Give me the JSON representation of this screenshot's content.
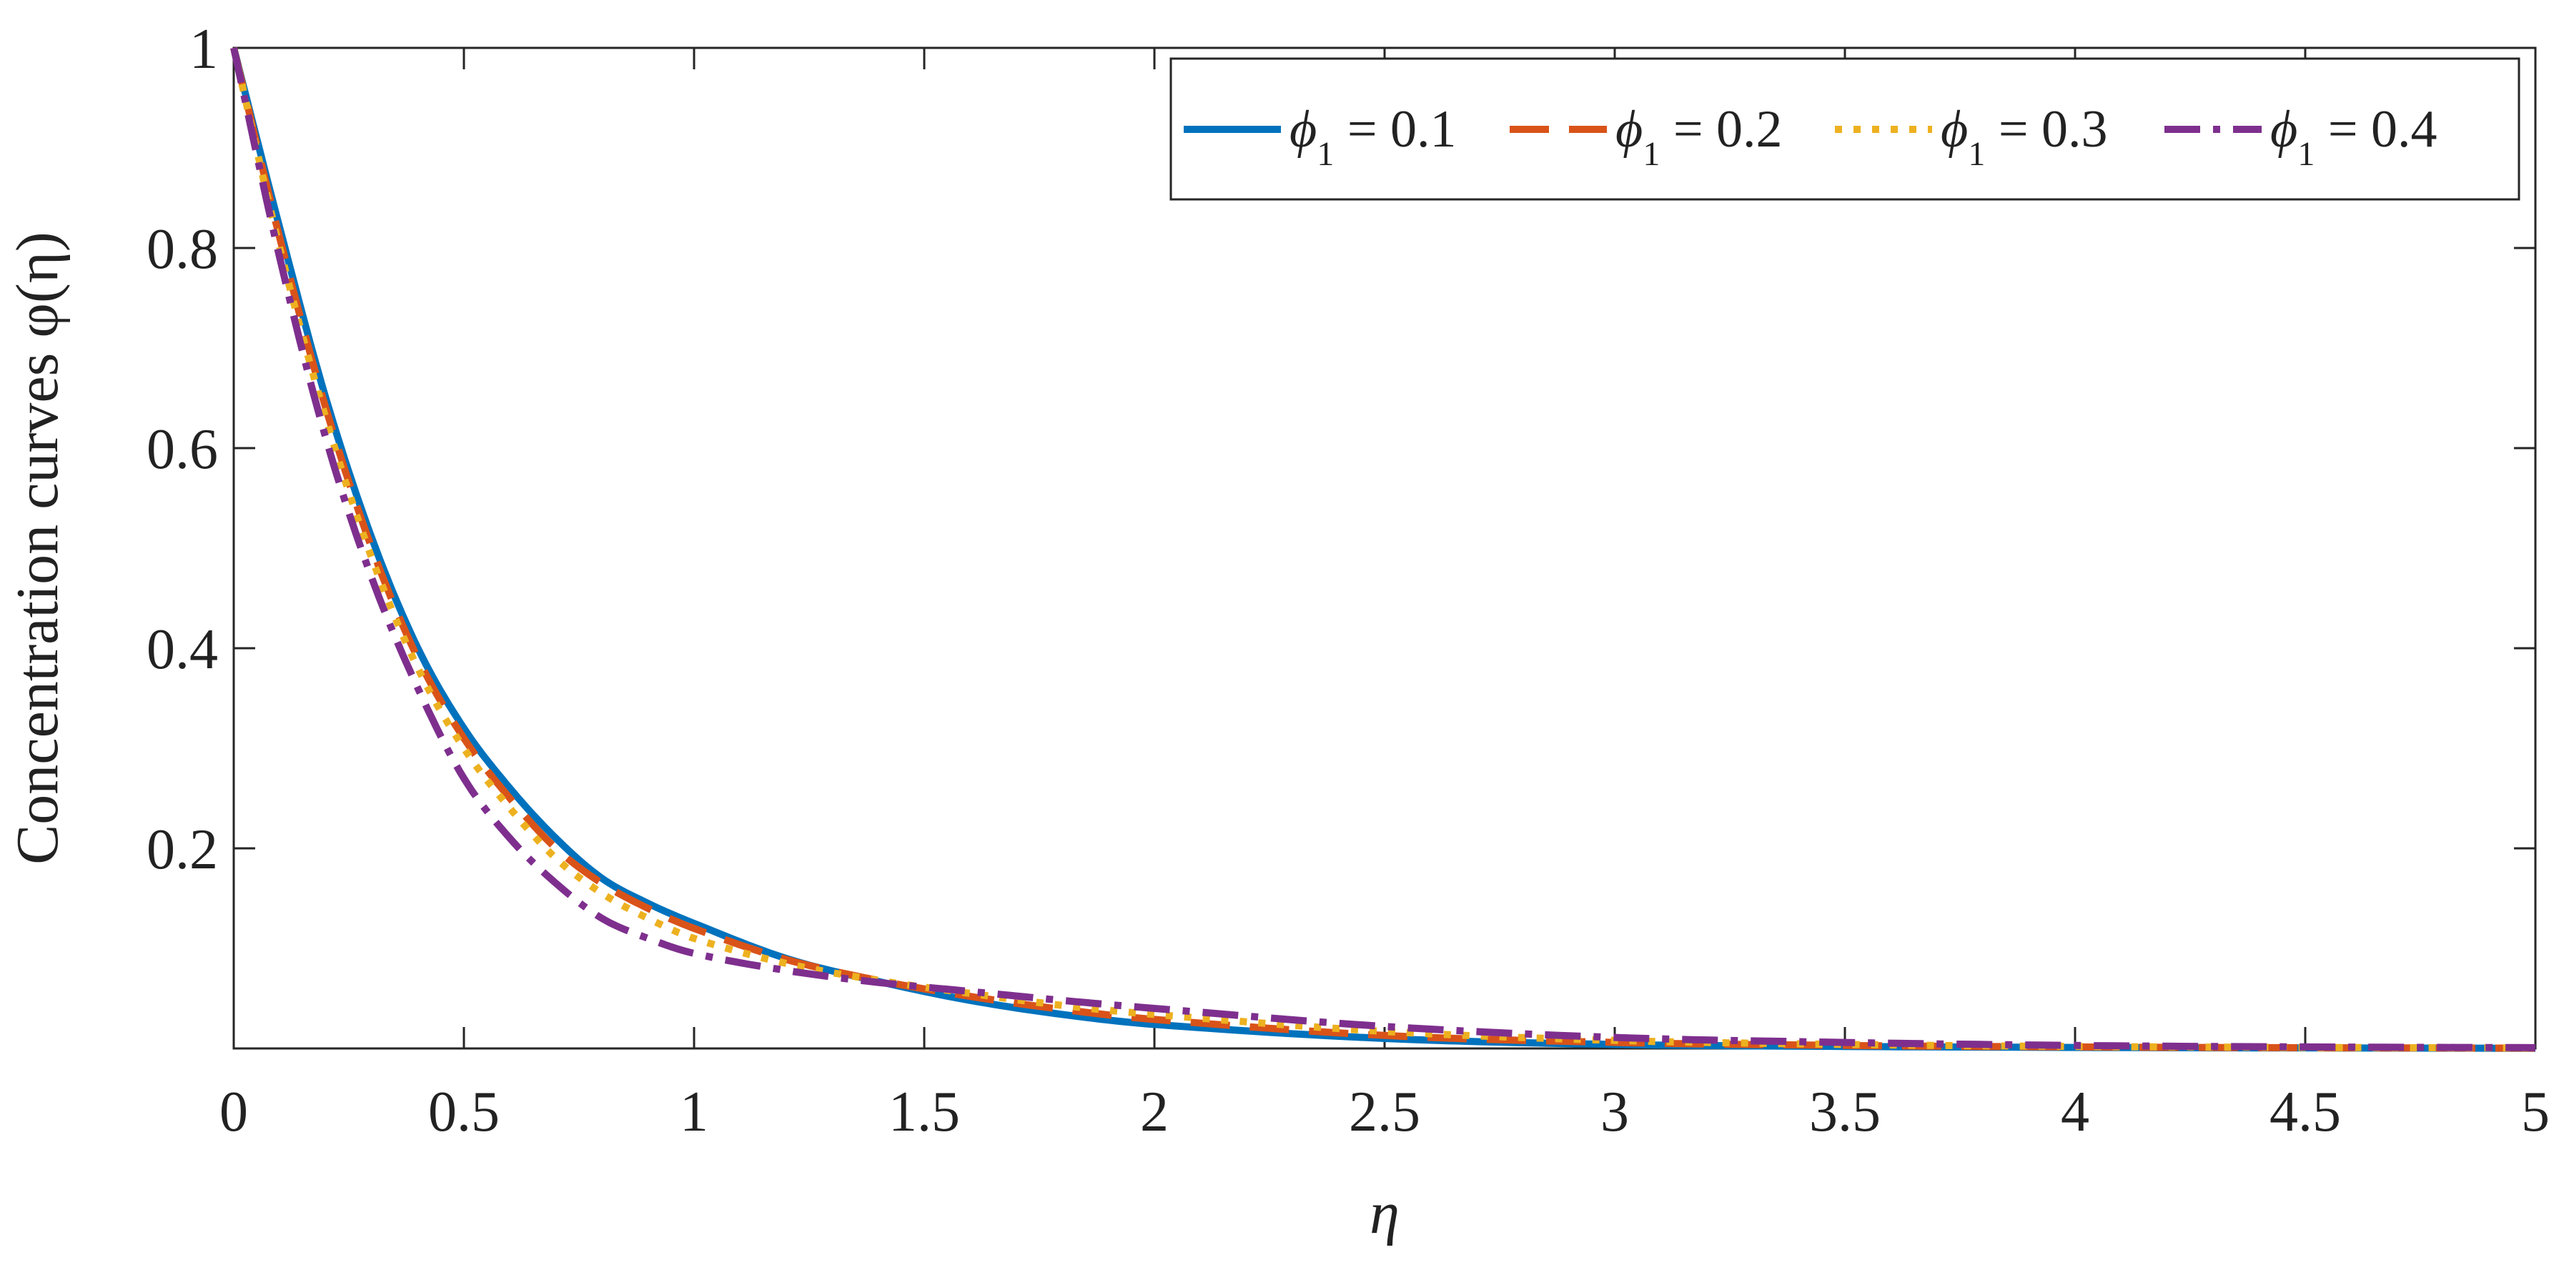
{
  "chart_data": {
    "type": "line",
    "title": "",
    "xlabel": "η",
    "ylabel": "Concentration curves φ(η)",
    "xlim": [
      0,
      5
    ],
    "ylim": [
      0,
      1
    ],
    "x_ticks": [
      "0",
      "0.5",
      "1",
      "1.5",
      "2",
      "2.5",
      "3",
      "3.5",
      "4",
      "4.5",
      "5"
    ],
    "y_ticks": [
      "0.2",
      "0.4",
      "0.6",
      "0.8",
      "1"
    ],
    "grid": false,
    "legend_position": "top-right",
    "legend_orientation": "horizontal",
    "x": [
      0,
      0.1,
      0.2,
      0.3,
      0.4,
      0.5,
      0.6,
      0.7,
      0.8,
      0.9,
      1.0,
      1.2,
      1.4,
      1.6,
      1.8,
      2.0,
      2.5,
      3.0,
      3.5,
      4.0,
      4.5,
      5.0
    ],
    "series": [
      {
        "name": "ϕ1 = 0.1",
        "color": "#0072BD",
        "dash": "solid",
        "values": [
          1.0,
          0.82,
          0.65,
          0.51,
          0.4,
          0.32,
          0.26,
          0.21,
          0.17,
          0.145,
          0.125,
          0.09,
          0.067,
          0.048,
          0.034,
          0.024,
          0.01,
          0.004,
          0.002,
          0.001,
          0.0005,
          0.0002
        ]
      },
      {
        "name": "ϕ1 = 0.2",
        "color": "#D95319",
        "dash": "dashed",
        "values": [
          1.0,
          0.81,
          0.64,
          0.5,
          0.39,
          0.31,
          0.25,
          0.2,
          0.165,
          0.14,
          0.12,
          0.089,
          0.068,
          0.052,
          0.039,
          0.029,
          0.013,
          0.006,
          0.003,
          0.0015,
          0.0007,
          0.0003
        ]
      },
      {
        "name": "ϕ1 = 0.3",
        "color": "#EDB120",
        "dash": "dotted",
        "values": [
          1.0,
          0.8,
          0.63,
          0.49,
          0.38,
          0.3,
          0.24,
          0.19,
          0.155,
          0.13,
          0.11,
          0.085,
          0.068,
          0.055,
          0.043,
          0.034,
          0.017,
          0.008,
          0.004,
          0.002,
          0.001,
          0.0005
        ]
      },
      {
        "name": "ϕ1 = 0.4",
        "color": "#7E2F8E",
        "dash": "dashdot",
        "values": [
          1.0,
          0.79,
          0.61,
          0.47,
          0.36,
          0.27,
          0.21,
          0.165,
          0.13,
          0.11,
          0.095,
          0.078,
          0.066,
          0.057,
          0.048,
          0.04,
          0.022,
          0.011,
          0.006,
          0.003,
          0.0015,
          0.0008
        ]
      }
    ]
  }
}
